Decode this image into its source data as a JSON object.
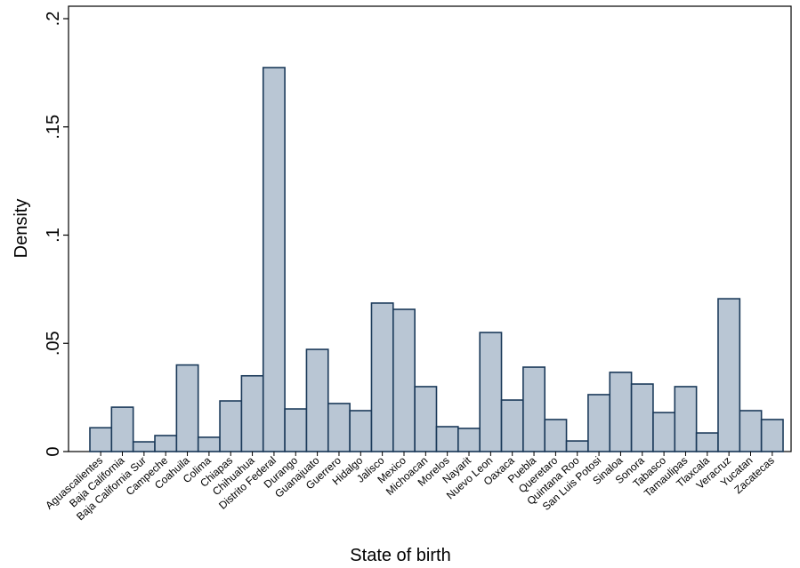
{
  "chart_data": {
    "type": "bar",
    "x_label": "State of birth",
    "y_label": "Density",
    "categories": [
      "Aguascalientes",
      "Baja California",
      "Baja California Sur",
      "Campeche",
      "Coahuila",
      "Colima",
      "Chiapas",
      "Chihuahua",
      "Distrito Federal",
      "Durango",
      "Guanajuato",
      "Guerrero",
      "Hidalgo",
      "Jalisco",
      "Mexico",
      "Michoacan",
      "Morelos",
      "Nayarit",
      "Nuevo Leon",
      "Oaxaca",
      "Puebla",
      "Queretaro",
      "Quintana Roo",
      "San Luis Potosi",
      "Sinaloa",
      "Sonora",
      "Tabasco",
      "Tamaulipas",
      "Tlaxcala",
      "Veracruz",
      "Yucatan",
      "Zacatecas"
    ],
    "values": [
      0.011,
      0.0205,
      0.0045,
      0.0074,
      0.04,
      0.0066,
      0.0234,
      0.035,
      0.1774,
      0.0197,
      0.0472,
      0.0222,
      0.0189,
      0.0686,
      0.0657,
      0.03,
      0.0115,
      0.0107,
      0.055,
      0.0238,
      0.039,
      0.0148,
      0.0049,
      0.0263,
      0.0366,
      0.0312,
      0.018,
      0.03,
      0.0086,
      0.0706,
      0.0189,
      0.0148
    ],
    "color": "#b9c6d4",
    "ylim": [
      0,
      0.2
    ],
    "yticks": [
      0,
      {
        "value": 0.05,
        "label": ".05"
      },
      {
        "value": 0.1,
        "label": ".1"
      },
      {
        "value": 0.15,
        "label": ".15"
      },
      {
        "value": 0.2,
        "label": ".2"
      }
    ],
    "grid": false
  }
}
